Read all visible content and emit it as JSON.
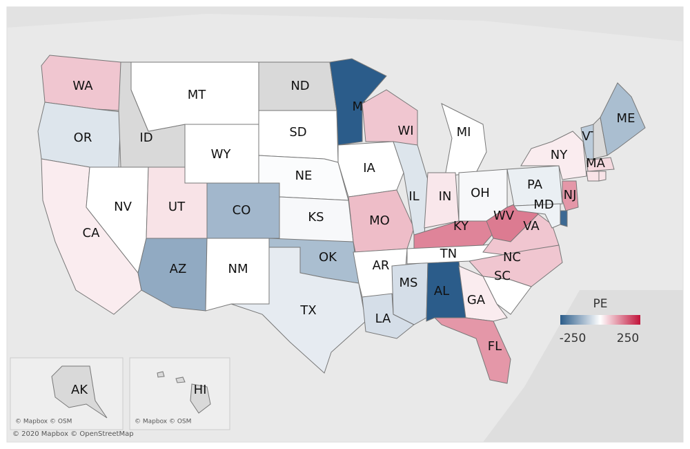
{
  "map": {
    "states": [
      {
        "label": "WA",
        "pe": 60
      },
      {
        "label": "OR",
        "pe": -40
      },
      {
        "label": "CA",
        "pe": 20
      },
      {
        "label": "NV",
        "pe": 0
      },
      {
        "label": "ID",
        "pe": null
      },
      {
        "label": "MT",
        "pe": 0
      },
      {
        "label": "WY",
        "pe": 0
      },
      {
        "label": "UT",
        "pe": 30
      },
      {
        "label": "AZ",
        "pe": -130
      },
      {
        "label": "CO",
        "pe": -110
      },
      {
        "label": "NM",
        "pe": 0
      },
      {
        "label": "ND",
        "pe": null
      },
      {
        "label": "SD",
        "pe": 0
      },
      {
        "label": "NE",
        "pe": -5
      },
      {
        "label": "KS",
        "pe": -10
      },
      {
        "label": "OK",
        "pe": -100
      },
      {
        "label": "TX",
        "pe": -30
      },
      {
        "label": "MN",
        "pe": -250
      },
      {
        "label": "IA",
        "pe": 0
      },
      {
        "label": "MO",
        "pe": 70
      },
      {
        "label": "AR",
        "pe": 0
      },
      {
        "label": "LA",
        "pe": -50
      },
      {
        "label": "MS",
        "pe": -50
      },
      {
        "label": "AL",
        "pe": -250
      },
      {
        "label": "WI",
        "pe": 60
      },
      {
        "label": "IL",
        "pe": -40
      },
      {
        "label": "MI",
        "pe": 0
      },
      {
        "label": "IN",
        "pe": 25
      },
      {
        "label": "OH",
        "pe": -10
      },
      {
        "label": "KY",
        "pe": 130
      },
      {
        "label": "TN",
        "pe": 0
      },
      {
        "label": "WV",
        "pe": 140
      },
      {
        "label": "VA",
        "pe": 60
      },
      {
        "label": "NC",
        "pe": 60
      },
      {
        "label": "SC",
        "pe": 0
      },
      {
        "label": "GA",
        "pe": 20
      },
      {
        "label": "FL",
        "pe": 110
      },
      {
        "label": "PA",
        "pe": -25
      },
      {
        "label": "NY",
        "pe": 20
      },
      {
        "label": "VT",
        "pe": -80
      },
      {
        "label": null,
        "pe": null
      },
      {
        "label": "ME",
        "pe": -100
      },
      {
        "label": "MA",
        "pe": 40
      },
      {
        "label": null,
        "pe": 30
      },
      {
        "label": null,
        "pe": 30
      },
      {
        "label": "NJ",
        "pe": 110
      },
      {
        "label": null,
        "pe": -230
      },
      {
        "label": "MD",
        "pe": -20
      },
      {
        "label": "AK",
        "pe": null
      },
      {
        "label": "HI",
        "pe": null
      }
    ]
  },
  "legend": {
    "title": "PE",
    "min": -250,
    "max": 250
  },
  "credits": {
    "alaska": "© Mapbox © OSM",
    "hawaii": "© Mapbox © OSM",
    "main": "© 2020 Mapbox © OpenStreetMap"
  }
}
